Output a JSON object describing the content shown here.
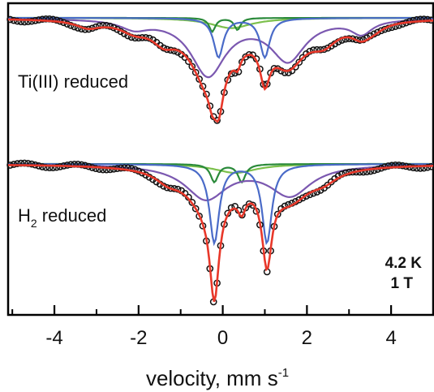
{
  "chart_data": {
    "type": "line",
    "title": "",
    "xlabel": "velocity, mm s",
    "xlabel_superscript": "-1",
    "ylabel": "",
    "xlim": [
      -5.1,
      5
    ],
    "xticks": [
      -4,
      -2,
      0,
      2,
      4
    ],
    "x_tick_labels": [
      "-4",
      "-2",
      "0",
      "2",
      "4"
    ],
    "grid": false,
    "legend": "none",
    "conditions": {
      "temperature": "4.2 K",
      "field": "1 T"
    },
    "colors": {
      "data": "#111111",
      "fit": "#e8382a",
      "blue": "#4a6bc8",
      "purple": "#7b58b0",
      "darkgreen": "#2a8a3a",
      "lightgreen": "#7cc04c"
    },
    "panels": [
      {
        "label": "Ti(III) reduced",
        "label_sub": "",
        "label_rest": "",
        "components": {
          "blue": [
            {
              "center": -0.1,
              "depth": 0.23,
              "width": 0.28
            },
            {
              "center": 1.0,
              "depth": 0.23,
              "width": 0.28
            }
          ],
          "purple": [
            {
              "center": -0.35,
              "depth": 0.33,
              "width": 1.0
            },
            {
              "center": 1.55,
              "depth": 0.24,
              "width": 1.0
            },
            {
              "center": 3.3,
              "depth": 0.08,
              "width": 0.6
            },
            {
              "center": -2.1,
              "depth": 0.05,
              "width": 0.8
            }
          ],
          "darkgreen": [
            {
              "center": -0.25,
              "depth": 0.08,
              "width": 0.18
            },
            {
              "center": 0.35,
              "depth": 0.07,
              "width": 0.18
            }
          ],
          "lightgreen": [
            {
              "center": 0.2,
              "depth": 0.06,
              "width": 1.2
            }
          ]
        },
        "fit_extra": [
          {
            "center": -1.4,
            "depth": 0.09,
            "width": 0.7
          },
          {
            "center": 2.4,
            "depth": 0.1,
            "width": 0.8
          },
          {
            "center": -3.2,
            "depth": 0.04,
            "width": 0.7
          },
          {
            "center": 3.6,
            "depth": 0.03,
            "width": 0.6
          }
        ]
      },
      {
        "label": "H",
        "label_sub": "2",
        "label_rest": " reduced",
        "components": {
          "blue": [
            {
              "center": -0.2,
              "depth": 0.44,
              "width": 0.28
            },
            {
              "center": 1.05,
              "depth": 0.44,
              "width": 0.28
            }
          ],
          "purple": [
            {
              "center": -0.4,
              "depth": 0.19,
              "width": 1.2
            },
            {
              "center": 1.6,
              "depth": 0.17,
              "width": 1.2
            }
          ],
          "darkgreen": [
            {
              "center": -0.2,
              "depth": 0.1,
              "width": 0.22
            },
            {
              "center": 0.45,
              "depth": 0.1,
              "width": 0.22
            }
          ],
          "lightgreen": [
            {
              "center": 0.3,
              "depth": 0.05,
              "width": 1.2
            }
          ]
        },
        "fit_extra": [
          {
            "center": -1.3,
            "depth": 0.05,
            "width": 0.7
          },
          {
            "center": 2.4,
            "depth": 0.05,
            "width": 0.8
          }
        ]
      }
    ]
  }
}
